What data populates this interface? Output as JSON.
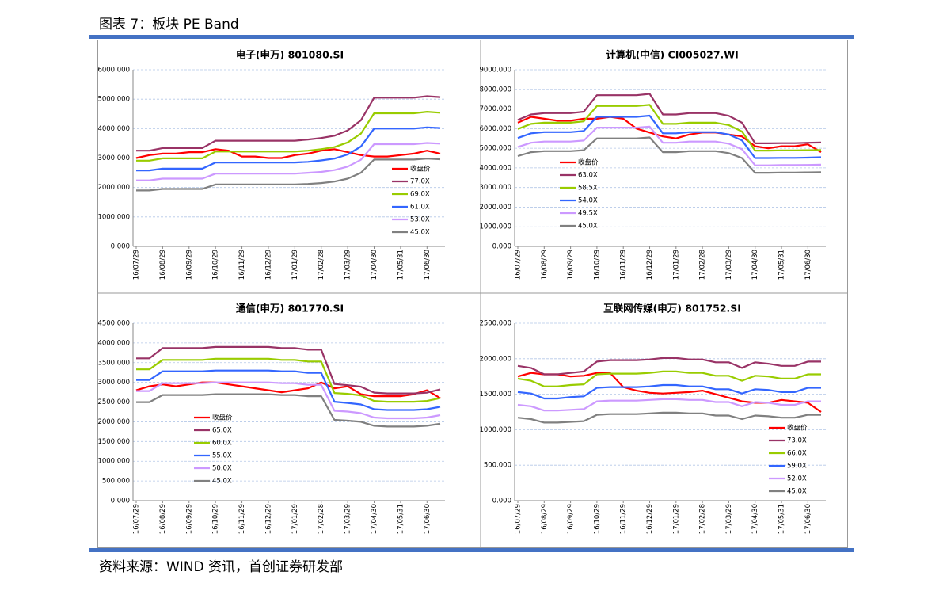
{
  "header": {
    "title": "图表 7：板块 PE Band"
  },
  "footer": {
    "source": "资料来源：WIND 资讯，首创证券研发部"
  },
  "chart_data": [
    {
      "type": "line",
      "title": "电子(申万) 801080.SI",
      "categories": [
        "16/07/29",
        null,
        "16/08/29",
        null,
        "16/09/29",
        null,
        "16/10/29",
        null,
        "16/11/29",
        null,
        "16/12/29",
        null,
        "17/01/29",
        null,
        "17/02/28",
        null,
        "17/03/29",
        null,
        "17/04/30",
        null,
        "17/05/31",
        null,
        "17/06/30",
        null
      ],
      "ylim": [
        0,
        6000
      ],
      "yticks": [
        {
          "value": 0,
          "label": "0.000"
        },
        {
          "value": 1000,
          "label": "1000.000"
        },
        {
          "value": 2000,
          "label": "2000.000"
        },
        {
          "value": 3000,
          "label": "3000.000"
        },
        {
          "value": 4000,
          "label": "4000.000"
        },
        {
          "value": 5000,
          "label": "5000.000"
        },
        {
          "value": 6000,
          "label": "6000.000"
        }
      ],
      "grid": true,
      "series": [
        {
          "name": "收盘价",
          "color": "#ff0000",
          "values": [
            3000,
            3100,
            3150,
            3150,
            3200,
            3200,
            3300,
            3250,
            3050,
            3050,
            3000,
            3000,
            3100,
            3150,
            3250,
            3300,
            3200,
            3100,
            3050,
            3050,
            3100,
            3150,
            3250,
            3150
          ]
        },
        {
          "name": "77.0X",
          "color": "#993366",
          "values": [
            3250,
            3250,
            3340,
            3340,
            3340,
            3340,
            3590,
            3590,
            3590,
            3590,
            3590,
            3590,
            3590,
            3630,
            3680,
            3760,
            3940,
            4280,
            5050,
            5050,
            5050,
            5050,
            5100,
            5070
          ]
        },
        {
          "name": "69.0X",
          "color": "#99cc00",
          "values": [
            2910,
            2910,
            2990,
            2990,
            2990,
            2990,
            3220,
            3220,
            3220,
            3220,
            3220,
            3220,
            3220,
            3250,
            3300,
            3370,
            3530,
            3830,
            4520,
            4520,
            4520,
            4520,
            4570,
            4540
          ]
        },
        {
          "name": "61.0X",
          "color": "#3366ff",
          "values": [
            2580,
            2580,
            2640,
            2640,
            2640,
            2640,
            2850,
            2850,
            2850,
            2850,
            2850,
            2850,
            2850,
            2870,
            2920,
            2980,
            3120,
            3390,
            4000,
            4000,
            4000,
            4000,
            4040,
            4020
          ]
        },
        {
          "name": "53.0X",
          "color": "#cc99ff",
          "values": [
            2240,
            2240,
            2300,
            2300,
            2300,
            2300,
            2470,
            2470,
            2470,
            2470,
            2470,
            2470,
            2470,
            2500,
            2530,
            2590,
            2710,
            2940,
            3470,
            3470,
            3470,
            3470,
            3510,
            3490
          ]
        },
        {
          "name": "45.0X",
          "color": "#808080",
          "values": [
            1900,
            1900,
            1950,
            1950,
            1950,
            1950,
            2100,
            2100,
            2100,
            2100,
            2100,
            2100,
            2100,
            2120,
            2150,
            2200,
            2300,
            2500,
            2950,
            2950,
            2950,
            2950,
            2980,
            2960
          ]
        }
      ]
    },
    {
      "type": "line",
      "title": "计算机(中信) CI005027.WI",
      "categories": [
        "16/07/29",
        null,
        "16/08/29",
        null,
        "16/09/29",
        null,
        "16/10/29",
        null,
        "16/11/29",
        null,
        "16/12/29",
        null,
        "17/01/29",
        null,
        "17/02/28",
        null,
        "17/03/29",
        null,
        "17/04/30",
        null,
        "17/05/31",
        null,
        "17/06/30",
        null
      ],
      "ylim": [
        0,
        9000
      ],
      "yticks": [
        {
          "value": 0,
          "label": "0.000"
        },
        {
          "value": 1000,
          "label": "1000.000"
        },
        {
          "value": 2000,
          "label": "2000.000"
        },
        {
          "value": 3000,
          "label": "3000.000"
        },
        {
          "value": 4000,
          "label": "4000.000"
        },
        {
          "value": 5000,
          "label": "5000.000"
        },
        {
          "value": 6000,
          "label": "6000.000"
        },
        {
          "value": 7000,
          "label": "7000.000"
        },
        {
          "value": 8000,
          "label": "8000.000"
        },
        {
          "value": 9000,
          "label": "9000.000"
        }
      ],
      "grid": true,
      "series": [
        {
          "name": "收盘价",
          "color": "#ff0000",
          "values": [
            6300,
            6600,
            6500,
            6400,
            6400,
            6500,
            6500,
            6600,
            6500,
            6000,
            5800,
            5600,
            5500,
            5700,
            5800,
            5800,
            5700,
            5600,
            5100,
            5000,
            5100,
            5100,
            5200,
            4800
          ]
        },
        {
          "name": "63.0X",
          "color": "#993366",
          "values": [
            6440,
            6720,
            6790,
            6790,
            6790,
            6860,
            7700,
            7700,
            7700,
            7700,
            7770,
            6720,
            6720,
            6790,
            6790,
            6790,
            6650,
            6300,
            5250,
            5250,
            5260,
            5260,
            5280,
            5290
          ]
        },
        {
          "name": "58.5X",
          "color": "#99cc00",
          "values": [
            5980,
            6240,
            6300,
            6300,
            6300,
            6370,
            7150,
            7150,
            7150,
            7150,
            7210,
            6240,
            6240,
            6300,
            6300,
            6300,
            6180,
            5850,
            4880,
            4880,
            4890,
            4890,
            4900,
            4910
          ]
        },
        {
          "name": "54.0X",
          "color": "#3366ff",
          "values": [
            5520,
            5760,
            5820,
            5820,
            5820,
            5880,
            6600,
            6600,
            6600,
            6600,
            6660,
            5760,
            5760,
            5820,
            5820,
            5820,
            5700,
            5400,
            4500,
            4500,
            4510,
            4510,
            4520,
            4540
          ]
        },
        {
          "name": "49.5X",
          "color": "#cc99ff",
          "values": [
            5060,
            5280,
            5340,
            5340,
            5340,
            5390,
            6050,
            6050,
            6050,
            6050,
            6100,
            5280,
            5280,
            5340,
            5340,
            5340,
            5230,
            4950,
            4130,
            4130,
            4140,
            4140,
            4150,
            4160
          ]
        },
        {
          "name": "45.0X",
          "color": "#808080",
          "values": [
            4600,
            4800,
            4850,
            4850,
            4850,
            4900,
            5500,
            5500,
            5500,
            5500,
            5550,
            4800,
            4800,
            4850,
            4850,
            4850,
            4750,
            4500,
            3750,
            3750,
            3760,
            3760,
            3770,
            3780
          ]
        }
      ]
    },
    {
      "type": "line",
      "title": "通信(申万) 801770.SI",
      "categories": [
        "16/07/29",
        null,
        "16/08/29",
        null,
        "16/09/29",
        null,
        "16/10/29",
        null,
        "16/11/29",
        null,
        "16/12/29",
        null,
        "17/01/29",
        null,
        "17/02/28",
        null,
        "17/03/29",
        null,
        "17/04/30",
        null,
        "17/05/31",
        null,
        "17/06/30",
        null
      ],
      "ylim": [
        0,
        4500
      ],
      "yticks": [
        {
          "value": 0,
          "label": "0.000"
        },
        {
          "value": 500,
          "label": "500.000"
        },
        {
          "value": 1000,
          "label": "1000.000"
        },
        {
          "value": 1500,
          "label": "1500.000"
        },
        {
          "value": 2000,
          "label": "2000.000"
        },
        {
          "value": 2500,
          "label": "2500.000"
        },
        {
          "value": 3000,
          "label": "3000.000"
        },
        {
          "value": 3500,
          "label": "3500.000"
        },
        {
          "value": 4000,
          "label": "4000.000"
        },
        {
          "value": 4500,
          "label": "4500.000"
        }
      ],
      "grid": true,
      "series": [
        {
          "name": "收盘价",
          "color": "#ff0000",
          "values": [
            2800,
            2900,
            2950,
            2900,
            2950,
            3000,
            3000,
            2950,
            2900,
            2850,
            2800,
            2750,
            2800,
            2850,
            3000,
            2850,
            2900,
            2700,
            2650,
            2650,
            2650,
            2700,
            2800,
            2600
          ]
        },
        {
          "name": "65.0X",
          "color": "#993366",
          "values": [
            3610,
            3610,
            3870,
            3870,
            3870,
            3870,
            3900,
            3900,
            3900,
            3900,
            3900,
            3870,
            3870,
            3830,
            3830,
            2960,
            2930,
            2890,
            2740,
            2720,
            2720,
            2720,
            2740,
            2820
          ]
        },
        {
          "name": "60.0X",
          "color": "#99cc00",
          "values": [
            3330,
            3330,
            3570,
            3570,
            3570,
            3570,
            3600,
            3600,
            3600,
            3600,
            3600,
            3570,
            3570,
            3530,
            3530,
            2730,
            2710,
            2670,
            2530,
            2510,
            2510,
            2510,
            2530,
            2600
          ]
        },
        {
          "name": "55.0X",
          "color": "#3366ff",
          "values": [
            3060,
            3060,
            3280,
            3280,
            3280,
            3280,
            3300,
            3300,
            3300,
            3300,
            3300,
            3280,
            3280,
            3240,
            3240,
            2510,
            2480,
            2440,
            2320,
            2300,
            2300,
            2300,
            2320,
            2380
          ]
        },
        {
          "name": "50.0X",
          "color": "#cc99ff",
          "values": [
            2780,
            2780,
            2980,
            2980,
            2980,
            2980,
            3000,
            3000,
            3000,
            3000,
            3000,
            2980,
            2980,
            2940,
            2940,
            2280,
            2260,
            2220,
            2110,
            2090,
            2090,
            2090,
            2110,
            2170
          ]
        },
        {
          "name": "45.0X",
          "color": "#808080",
          "values": [
            2500,
            2500,
            2680,
            2680,
            2680,
            2680,
            2700,
            2700,
            2700,
            2700,
            2700,
            2680,
            2680,
            2650,
            2650,
            2050,
            2030,
            2000,
            1900,
            1880,
            1880,
            1880,
            1900,
            1950
          ]
        }
      ]
    },
    {
      "type": "line",
      "title": "互联网传媒(申万) 801752.SI",
      "categories": [
        "16/07/29",
        null,
        "16/08/29",
        null,
        "16/09/29",
        null,
        "16/10/29",
        null,
        "16/11/29",
        null,
        "16/12/29",
        null,
        "17/01/29",
        null,
        "17/02/28",
        null,
        "17/03/29",
        null,
        "17/04/30",
        null,
        "17/05/31",
        null,
        "17/06/30",
        null
      ],
      "ylim": [
        0,
        2500
      ],
      "yticks": [
        {
          "value": 0,
          "label": "0.000"
        },
        {
          "value": 500,
          "label": "500.000"
        },
        {
          "value": 1000,
          "label": "1000.000"
        },
        {
          "value": 1500,
          "label": "1500.000"
        },
        {
          "value": 2000,
          "label": "2000.000"
        },
        {
          "value": 2500,
          "label": "2500.000"
        }
      ],
      "grid": true,
      "series": [
        {
          "name": "收盘价",
          "color": "#ff0000",
          "values": [
            1750,
            1800,
            1780,
            1780,
            1750,
            1760,
            1800,
            1800,
            1600,
            1550,
            1520,
            1510,
            1520,
            1530,
            1550,
            1500,
            1450,
            1400,
            1380,
            1380,
            1420,
            1400,
            1380,
            1250
          ]
        },
        {
          "name": "73.0X",
          "color": "#993366",
          "values": [
            1900,
            1870,
            1780,
            1780,
            1800,
            1820,
            1960,
            1980,
            1980,
            1980,
            1990,
            2010,
            2010,
            1990,
            1990,
            1950,
            1950,
            1870,
            1950,
            1930,
            1900,
            1900,
            1960,
            1960
          ]
        },
        {
          "name": "66.0X",
          "color": "#99cc00",
          "values": [
            1720,
            1690,
            1610,
            1610,
            1630,
            1640,
            1780,
            1790,
            1790,
            1790,
            1800,
            1820,
            1820,
            1800,
            1800,
            1760,
            1760,
            1690,
            1760,
            1750,
            1720,
            1720,
            1780,
            1780
          ]
        },
        {
          "name": "59.0X",
          "color": "#3366ff",
          "values": [
            1530,
            1510,
            1440,
            1440,
            1460,
            1470,
            1590,
            1600,
            1600,
            1600,
            1610,
            1630,
            1630,
            1610,
            1610,
            1570,
            1570,
            1510,
            1570,
            1560,
            1530,
            1530,
            1590,
            1590
          ]
        },
        {
          "name": "52.0X",
          "color": "#cc99ff",
          "values": [
            1350,
            1330,
            1270,
            1270,
            1280,
            1290,
            1400,
            1410,
            1410,
            1410,
            1420,
            1430,
            1430,
            1420,
            1420,
            1390,
            1390,
            1330,
            1390,
            1380,
            1350,
            1350,
            1400,
            1400
          ]
        },
        {
          "name": "45.0X",
          "color": "#808080",
          "values": [
            1170,
            1150,
            1100,
            1100,
            1110,
            1120,
            1210,
            1220,
            1220,
            1220,
            1230,
            1240,
            1240,
            1230,
            1230,
            1200,
            1200,
            1150,
            1200,
            1190,
            1170,
            1170,
            1210,
            1210
          ]
        }
      ]
    }
  ]
}
